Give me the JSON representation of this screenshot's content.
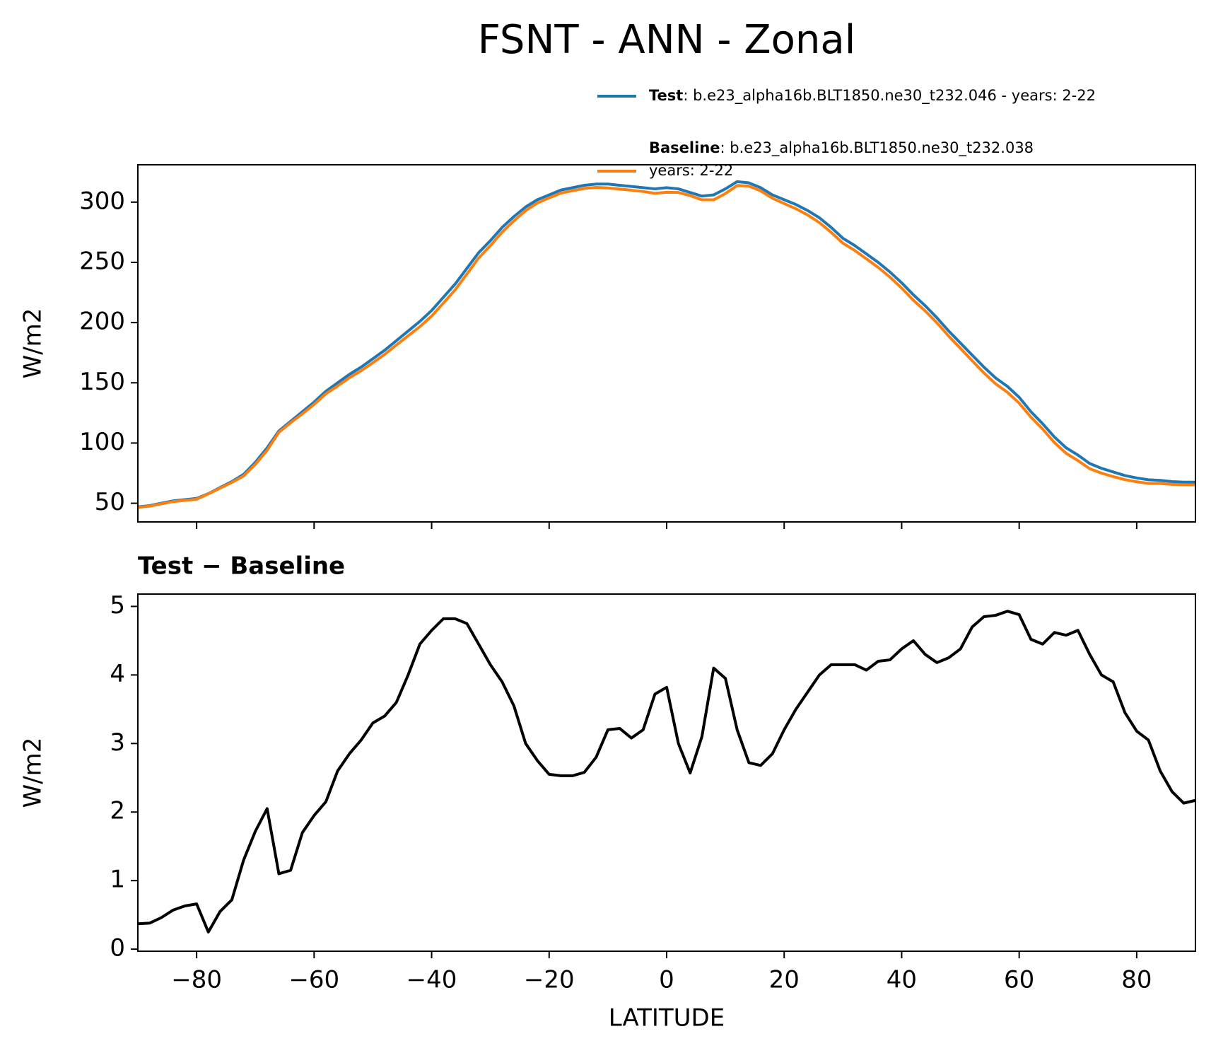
{
  "title": "FSNT - ANN - Zonal",
  "chart_data": [
    {
      "type": "line",
      "ylabel": "W/m2",
      "x": [
        -90,
        -88,
        -86,
        -84,
        -82,
        -80,
        -78,
        -76,
        -74,
        -72,
        -70,
        -68,
        -66,
        -64,
        -62,
        -60,
        -58,
        -56,
        -54,
        -52,
        -50,
        -48,
        -46,
        -44,
        -42,
        -40,
        -38,
        -36,
        -34,
        -32,
        -30,
        -28,
        -26,
        -24,
        -22,
        -20,
        -18,
        -16,
        -14,
        -12,
        -10,
        -8,
        -6,
        -4,
        -2,
        0,
        2,
        4,
        6,
        8,
        10,
        12,
        14,
        16,
        18,
        20,
        22,
        24,
        26,
        28,
        30,
        32,
        34,
        36,
        38,
        40,
        42,
        44,
        46,
        48,
        50,
        52,
        54,
        56,
        58,
        60,
        62,
        64,
        66,
        68,
        70,
        72,
        74,
        76,
        78,
        80,
        82,
        84,
        86,
        88,
        90
      ],
      "series": [
        {
          "name": "Test",
          "description": [
            ": b.e23_alpha16b.BLT1850.ne30_t232.046 - years: 2-22"
          ],
          "color": "#1f77b4",
          "values": [
            47,
            48,
            50,
            52,
            53,
            54,
            58,
            63,
            68,
            74,
            84,
            96,
            110,
            118,
            126,
            134,
            143,
            150,
            157,
            163,
            170,
            177,
            185,
            193,
            201,
            210,
            221,
            232,
            245,
            258,
            268,
            279,
            288,
            296,
            302,
            306,
            310,
            312,
            314,
            315,
            315,
            314,
            313,
            312,
            311,
            312,
            311,
            308,
            305,
            306,
            311,
            317,
            316,
            312,
            306,
            302,
            298,
            293,
            287,
            279,
            270,
            264,
            257,
            250,
            242,
            233,
            223,
            214,
            204,
            193,
            183,
            173,
            163,
            154,
            147,
            138,
            126,
            116,
            105,
            96,
            90,
            83,
            79,
            76,
            73,
            71,
            69.5,
            69,
            68,
            67.5,
            67.5
          ]
        },
        {
          "name": "Baseline",
          "description": [
            ": b.e23_alpha16b.BLT1850.ne30_t232.038",
            "years: 2-22"
          ],
          "color": "#ff7f0e",
          "values": [
            46.6,
            47.6,
            49.5,
            51.4,
            52.4,
            53.3,
            57.8,
            62.5,
            67.3,
            72.7,
            82.3,
            94.0,
            108.9,
            116.9,
            124.3,
            132.1,
            140.9,
            147.4,
            154.2,
            160.0,
            166.7,
            173.6,
            181.4,
            189.0,
            196.6,
            205.4,
            216.2,
            227.2,
            240.3,
            253.6,
            263.9,
            275.1,
            284.5,
            293.0,
            299.3,
            303.5,
            307.5,
            309.5,
            311.4,
            312.2,
            311.8,
            310.8,
            309.9,
            308.8,
            307.3,
            308.2,
            308.0,
            305.4,
            301.9,
            301.9,
            307.1,
            313.8,
            313.3,
            309.3,
            303.2,
            298.8,
            294.5,
            289.3,
            283.0,
            274.9,
            265.9,
            259.9,
            252.9,
            245.8,
            237.8,
            228.6,
            218.5,
            209.7,
            199.8,
            188.8,
            178.6,
            168.3,
            158.2,
            149.1,
            142.1,
            133.1,
            121.5,
            111.6,
            100.4,
            91.4,
            85.4,
            78.7,
            75.0,
            72.1,
            69.6,
            67.8,
            66.5,
            66.4,
            65.7,
            65.4,
            65.3
          ]
        }
      ],
      "xlim": [
        -90,
        90
      ],
      "xticks": [
        -80,
        -60,
        -40,
        -20,
        0,
        20,
        40,
        60,
        80
      ],
      "ylim": [
        34.5,
        331
      ],
      "yticks": [
        50,
        100,
        150,
        200,
        250,
        300
      ],
      "legend": "upper-right-outside"
    },
    {
      "type": "line",
      "title": "Test − Baseline",
      "ylabel": "W/m2",
      "xlabel": "LATITUDE",
      "x": [
        -90,
        -88,
        -86,
        -84,
        -82,
        -80,
        -78,
        -76,
        -74,
        -72,
        -70,
        -68,
        -66,
        -64,
        -62,
        -60,
        -58,
        -56,
        -54,
        -52,
        -50,
        -48,
        -46,
        -44,
        -42,
        -40,
        -38,
        -36,
        -34,
        -32,
        -30,
        -28,
        -26,
        -24,
        -22,
        -20,
        -18,
        -16,
        -14,
        -12,
        -10,
        -8,
        -6,
        -4,
        -2,
        0,
        2,
        4,
        6,
        8,
        10,
        12,
        14,
        16,
        18,
        20,
        22,
        24,
        26,
        28,
        30,
        32,
        34,
        36,
        38,
        40,
        42,
        44,
        46,
        48,
        50,
        52,
        54,
        56,
        58,
        60,
        62,
        64,
        66,
        68,
        70,
        72,
        74,
        76,
        78,
        80,
        82,
        84,
        86,
        88,
        90
      ],
      "series": [
        {
          "color": "#000000",
          "values": [
            0.37,
            0.38,
            0.46,
            0.57,
            0.63,
            0.66,
            0.25,
            0.55,
            0.72,
            1.3,
            1.72,
            2.05,
            1.1,
            1.15,
            1.7,
            1.95,
            2.15,
            2.6,
            2.85,
            3.05,
            3.3,
            3.4,
            3.6,
            4.0,
            4.45,
            4.65,
            4.82,
            4.82,
            4.75,
            4.45,
            4.15,
            3.9,
            3.55,
            3.0,
            2.75,
            2.55,
            2.53,
            2.53,
            2.58,
            2.8,
            3.2,
            3.22,
            3.08,
            3.2,
            3.72,
            3.82,
            3.0,
            2.57,
            3.1,
            4.1,
            3.95,
            3.2,
            2.72,
            2.68,
            2.85,
            3.2,
            3.5,
            3.75,
            4.0,
            4.15,
            4.15,
            4.15,
            4.07,
            4.2,
            4.22,
            4.38,
            4.5,
            4.3,
            4.18,
            4.25,
            4.38,
            4.7,
            4.85,
            4.87,
            4.93,
            4.88,
            4.52,
            4.45,
            4.62,
            4.58,
            4.65,
            4.3,
            4.0,
            3.9,
            3.45,
            3.18,
            3.05,
            2.6,
            2.3,
            2.13,
            2.17
          ]
        }
      ],
      "xlim": [
        -90,
        90
      ],
      "xticks": [
        {
          "value": -80,
          "label": "−80"
        },
        {
          "value": -60,
          "label": "−60"
        },
        {
          "value": -40,
          "label": "−40"
        },
        {
          "value": -20,
          "label": "−20"
        },
        0,
        20,
        40,
        60,
        80
      ],
      "ylim": [
        -0.03,
        5.18
      ],
      "yticks": [
        0,
        1,
        2,
        3,
        4,
        5
      ]
    }
  ]
}
